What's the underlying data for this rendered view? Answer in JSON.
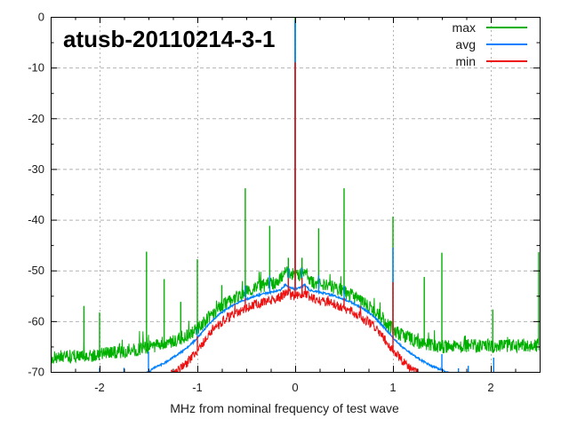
{
  "title": "atusb-20110214-3-1",
  "chart_data": {
    "type": "line",
    "title": "atusb-20110214-3-1",
    "xlabel": "MHz from nominal frequency of test wave",
    "ylabel": "",
    "xlim": [
      -2.5,
      2.5
    ],
    "ylim": [
      -70,
      0
    ],
    "grid": true,
    "legend_position": "top-right-inside",
    "grid_color": "#b4b4b4",
    "border_color": "#000000",
    "x_major_tick": 1,
    "x_minor_tick": 0.25,
    "y_major_tick": 10,
    "y_minor_tick": 5,
    "x_ticks": [
      {
        "value": -2,
        "label": "-2"
      },
      {
        "value": -1,
        "label": "-1"
      },
      {
        "value": 0,
        "label": "0"
      },
      {
        "value": 1,
        "label": "1"
      },
      {
        "value": 2,
        "label": "2"
      }
    ],
    "y_ticks": [
      {
        "value": 0,
        "label": "0"
      },
      {
        "value": -10,
        "label": "-10"
      },
      {
        "value": -20,
        "label": "-20"
      },
      {
        "value": -30,
        "label": "-30"
      },
      {
        "value": -40,
        "label": "-40"
      },
      {
        "value": -50,
        "label": "-50"
      },
      {
        "value": -60,
        "label": "-60"
      },
      {
        "value": -70,
        "label": "-70"
      }
    ],
    "series": [
      {
        "name": "max",
        "color": "#00b000",
        "noise_db": 1.35,
        "spike_chance": 0.962,
        "spike_extra_db": 2.8,
        "peak": {
          "mhz": 0,
          "db": 0
        },
        "envelope_db_vs_mhz": [
          [
            -2.5,
            -67.2
          ],
          [
            -2.3,
            -67.0
          ],
          [
            -2.1,
            -66.8
          ],
          [
            -1.9,
            -66.3
          ],
          [
            -1.7,
            -65.8
          ],
          [
            -1.5,
            -65.2
          ],
          [
            -1.35,
            -64.6
          ],
          [
            -1.2,
            -63.6
          ],
          [
            -1.1,
            -62.8
          ],
          [
            -1.0,
            -61.6
          ],
          [
            -0.9,
            -59.6
          ],
          [
            -0.8,
            -57.8
          ],
          [
            -0.7,
            -56.4
          ],
          [
            -0.6,
            -55.2
          ],
          [
            -0.5,
            -54.2
          ],
          [
            -0.4,
            -53.4
          ],
          [
            -0.3,
            -52.8
          ],
          [
            -0.2,
            -52.4
          ],
          [
            -0.15,
            -51.8
          ],
          [
            -0.1,
            -50.3
          ],
          [
            -0.05,
            -50.8
          ],
          [
            0,
            -50.7
          ],
          [
            0.05,
            -50.8
          ],
          [
            0.1,
            -50.3
          ],
          [
            0.15,
            -51.8
          ],
          [
            0.2,
            -52.4
          ],
          [
            0.3,
            -52.8
          ],
          [
            0.4,
            -53.4
          ],
          [
            0.5,
            -54.2
          ],
          [
            0.6,
            -55.2
          ],
          [
            0.7,
            -56.4
          ],
          [
            0.8,
            -57.8
          ],
          [
            0.9,
            -59.6
          ],
          [
            1.0,
            -61.6
          ],
          [
            1.1,
            -62.8
          ],
          [
            1.2,
            -63.6
          ],
          [
            1.35,
            -64.6
          ],
          [
            1.5,
            -65.0
          ],
          [
            1.7,
            -64.9
          ],
          [
            1.9,
            -64.9
          ],
          [
            2.1,
            -64.8
          ],
          [
            2.3,
            -64.8
          ],
          [
            2.5,
            -64.7
          ]
        ],
        "spurs_mhz_db": [
          [
            -2.16,
            -57.0
          ],
          [
            -2.0,
            -58.3
          ],
          [
            -1.52,
            -46.3
          ],
          [
            -1.34,
            -51.7
          ],
          [
            -1.17,
            -56.2
          ],
          [
            -1.0,
            -47.8
          ],
          [
            -0.75,
            -52.9
          ],
          [
            -0.51,
            -33.8
          ],
          [
            -0.26,
            -41.2
          ],
          [
            -0.07,
            -47.5
          ],
          [
            0.07,
            -47.5
          ],
          [
            0.24,
            -41.7
          ],
          [
            0.5,
            -33.8
          ],
          [
            1.0,
            -39.4
          ],
          [
            1.32,
            -51.3
          ],
          [
            1.5,
            -46.5
          ],
          [
            2.02,
            -57.7
          ],
          [
            2.49,
            -46.4
          ]
        ]
      },
      {
        "name": "avg",
        "color": "#0080ff",
        "noise_db": 0.18,
        "spike_chance": 1.1,
        "spike_extra_db": 0,
        "peak": {
          "mhz": 0,
          "db": -0.7
        },
        "envelope_db_vs_mhz": [
          [
            -1.52,
            -70.3
          ],
          [
            -1.45,
            -69.3
          ],
          [
            -1.35,
            -68.4
          ],
          [
            -1.25,
            -67.2
          ],
          [
            -1.15,
            -65.9
          ],
          [
            -1.05,
            -64.3
          ],
          [
            -1.0,
            -63.3
          ],
          [
            -0.9,
            -61.0
          ],
          [
            -0.8,
            -59.0
          ],
          [
            -0.7,
            -57.6
          ],
          [
            -0.6,
            -56.5
          ],
          [
            -0.5,
            -55.7
          ],
          [
            -0.4,
            -55.0
          ],
          [
            -0.3,
            -54.5
          ],
          [
            -0.2,
            -54.1
          ],
          [
            -0.15,
            -53.9
          ],
          [
            -0.1,
            -52.8
          ],
          [
            -0.05,
            -53.4
          ],
          [
            0,
            -53.7
          ],
          [
            0.05,
            -53.4
          ],
          [
            0.1,
            -52.8
          ],
          [
            0.15,
            -53.9
          ],
          [
            0.2,
            -54.1
          ],
          [
            0.3,
            -54.5
          ],
          [
            0.4,
            -55.0
          ],
          [
            0.5,
            -55.7
          ],
          [
            0.6,
            -56.5
          ],
          [
            0.7,
            -57.6
          ],
          [
            0.8,
            -59.0
          ],
          [
            0.9,
            -61.0
          ],
          [
            1.0,
            -63.3
          ],
          [
            1.1,
            -65.2
          ],
          [
            1.2,
            -66.6
          ],
          [
            1.3,
            -67.8
          ],
          [
            1.4,
            -68.9
          ],
          [
            1.5,
            -69.6
          ],
          [
            1.57,
            -70.3
          ]
        ],
        "spurs_mhz_db": [
          [
            -2.0,
            -69.2
          ],
          [
            -1.75,
            -69.2
          ],
          [
            -1.5,
            -66.0
          ],
          [
            -1.34,
            -68.5
          ],
          [
            -1.0,
            -61.5
          ],
          [
            -0.51,
            -53.0
          ],
          [
            -0.26,
            -51.0
          ],
          [
            -0.07,
            -49.5
          ],
          [
            0.07,
            -49.5
          ],
          [
            0.24,
            -51.0
          ],
          [
            0.5,
            -53.0
          ],
          [
            1.0,
            -45.5
          ],
          [
            1.5,
            -66.5
          ],
          [
            1.67,
            -69.3
          ],
          [
            1.77,
            -68.8
          ],
          [
            2.03,
            -67.2
          ]
        ]
      },
      {
        "name": "min",
        "color": "#ee1111",
        "noise_db": 0.95,
        "spike_chance": 0.978,
        "spike_extra_db": 1.5,
        "peak": {
          "mhz": 0,
          "db": -9
        },
        "envelope_db_vs_mhz": [
          [
            -1.27,
            -70.4
          ],
          [
            -1.2,
            -69.8
          ],
          [
            -1.1,
            -68.0
          ],
          [
            -1.0,
            -65.8
          ],
          [
            -0.9,
            -63.2
          ],
          [
            -0.8,
            -61.0
          ],
          [
            -0.7,
            -59.5
          ],
          [
            -0.6,
            -58.3
          ],
          [
            -0.5,
            -57.4
          ],
          [
            -0.4,
            -56.6
          ],
          [
            -0.3,
            -56.1
          ],
          [
            -0.2,
            -55.7
          ],
          [
            -0.15,
            -55.3
          ],
          [
            -0.1,
            -54.3
          ],
          [
            -0.05,
            -54.9
          ],
          [
            0,
            -55.2
          ],
          [
            0.05,
            -54.9
          ],
          [
            0.1,
            -54.3
          ],
          [
            0.15,
            -55.3
          ],
          [
            0.2,
            -55.7
          ],
          [
            0.3,
            -56.1
          ],
          [
            0.4,
            -56.6
          ],
          [
            0.5,
            -57.4
          ],
          [
            0.6,
            -58.3
          ],
          [
            0.7,
            -59.5
          ],
          [
            0.8,
            -61.0
          ],
          [
            0.9,
            -63.2
          ],
          [
            1.0,
            -65.8
          ],
          [
            1.1,
            -68.0
          ],
          [
            1.2,
            -69.8
          ],
          [
            1.26,
            -70.4
          ]
        ],
        "spurs_mhz_db": [
          [
            -1.0,
            -63.0
          ],
          [
            -0.51,
            -55.5
          ],
          [
            -0.07,
            -51.5
          ],
          [
            0.07,
            -51.5
          ],
          [
            0.5,
            -55.5
          ],
          [
            1.0,
            -52.3
          ]
        ]
      }
    ]
  }
}
